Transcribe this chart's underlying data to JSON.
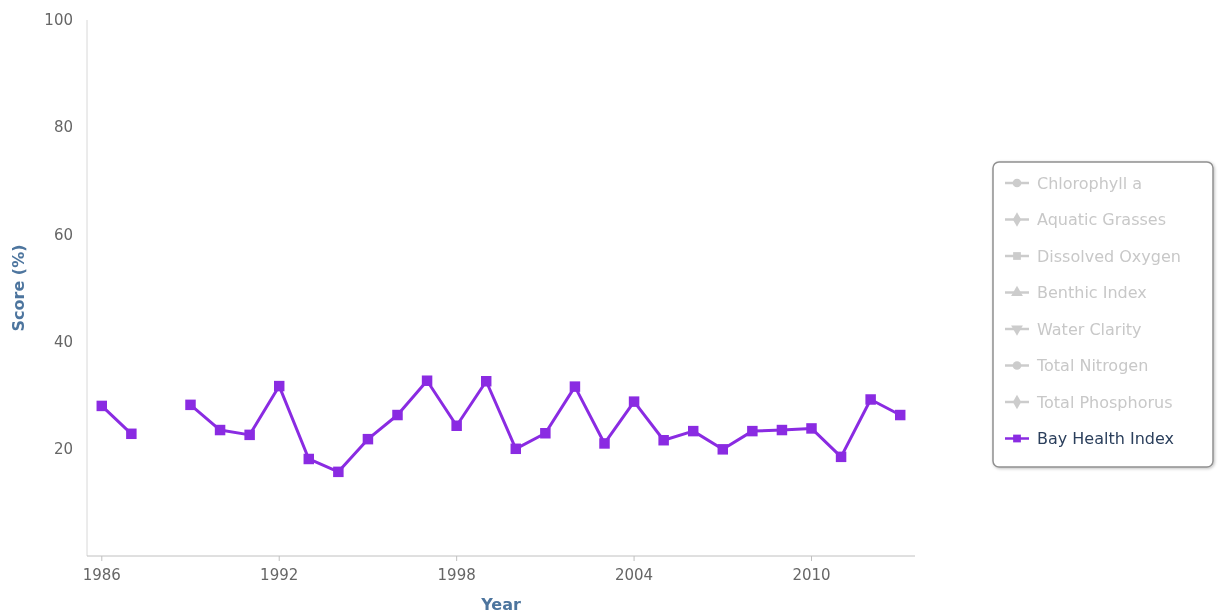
{
  "chart_data": {
    "type": "line",
    "xlabel": "Year",
    "ylabel": "Score (%)",
    "x": [
      1986,
      1987,
      1988,
      1989,
      1990,
      1991,
      1992,
      1993,
      1994,
      1995,
      1996,
      1997,
      1998,
      1999,
      2000,
      2001,
      2002,
      2003,
      2004,
      2005,
      2006,
      2007,
      2008,
      2009,
      2010,
      2011,
      2012,
      2013
    ],
    "xlim": [
      1985.5,
      2013.5
    ],
    "xticks": [
      1986,
      1992,
      1998,
      2004,
      2010
    ],
    "ylim": [
      0,
      100
    ],
    "yticks": [
      20,
      40,
      60,
      80,
      100
    ],
    "grid": false,
    "legend": "right",
    "line_style": "solid",
    "series": [
      {
        "name": "Chlorophyll a",
        "color": "#cccccc",
        "marker": "circle",
        "values": [
          null,
          null,
          null,
          null,
          null,
          null,
          null,
          null,
          null,
          null,
          null,
          null,
          null,
          null,
          null,
          null,
          null,
          null,
          null,
          null,
          null,
          null,
          null,
          null,
          null,
          null,
          null,
          null
        ]
      },
      {
        "name": "Aquatic Grasses",
        "color": "#cccccc",
        "marker": "diamond",
        "values": [
          null,
          null,
          null,
          null,
          null,
          null,
          null,
          null,
          null,
          null,
          null,
          null,
          null,
          null,
          null,
          null,
          null,
          null,
          null,
          null,
          null,
          null,
          null,
          null,
          null,
          null,
          null,
          null
        ]
      },
      {
        "name": "Dissolved Oxygen",
        "color": "#cccccc",
        "marker": "square",
        "values": [
          null,
          null,
          null,
          null,
          null,
          null,
          null,
          null,
          null,
          null,
          null,
          null,
          null,
          null,
          null,
          null,
          null,
          null,
          null,
          null,
          null,
          null,
          null,
          null,
          null,
          null,
          null,
          null
        ]
      },
      {
        "name": "Benthic Index",
        "color": "#cccccc",
        "marker": "triangle",
        "values": [
          null,
          null,
          null,
          null,
          null,
          null,
          null,
          null,
          null,
          null,
          null,
          null,
          null,
          null,
          null,
          null,
          null,
          null,
          null,
          null,
          null,
          null,
          null,
          null,
          null,
          null,
          null,
          null
        ]
      },
      {
        "name": "Water Clarity",
        "color": "#cccccc",
        "marker": "triangle-down",
        "values": [
          null,
          null,
          null,
          null,
          null,
          null,
          null,
          null,
          null,
          null,
          null,
          null,
          null,
          null,
          null,
          null,
          null,
          null,
          null,
          null,
          null,
          null,
          null,
          null,
          null,
          null,
          null,
          null
        ]
      },
      {
        "name": "Total Nitrogen",
        "color": "#cccccc",
        "marker": "circle",
        "values": [
          null,
          null,
          null,
          null,
          null,
          null,
          null,
          null,
          null,
          null,
          null,
          null,
          null,
          null,
          null,
          null,
          null,
          null,
          null,
          null,
          null,
          null,
          null,
          null,
          null,
          null,
          null,
          null
        ]
      },
      {
        "name": "Total Phosphorus",
        "color": "#cccccc",
        "marker": "diamond",
        "values": [
          null,
          null,
          null,
          null,
          null,
          null,
          null,
          null,
          null,
          null,
          null,
          null,
          null,
          null,
          null,
          null,
          null,
          null,
          null,
          null,
          null,
          null,
          null,
          null,
          null,
          null,
          null,
          null
        ]
      },
      {
        "name": "Bay Health Index",
        "color": "#8a2be2",
        "marker": "square",
        "values": [
          28.0,
          22.8,
          null,
          28.2,
          23.5,
          22.6,
          31.7,
          18.1,
          15.7,
          21.8,
          26.3,
          32.7,
          24.3,
          32.6,
          20.0,
          22.9,
          31.6,
          21.0,
          28.8,
          21.6,
          23.3,
          19.9,
          23.3,
          23.5,
          23.8,
          18.5,
          29.2,
          26.3
        ]
      }
    ]
  }
}
